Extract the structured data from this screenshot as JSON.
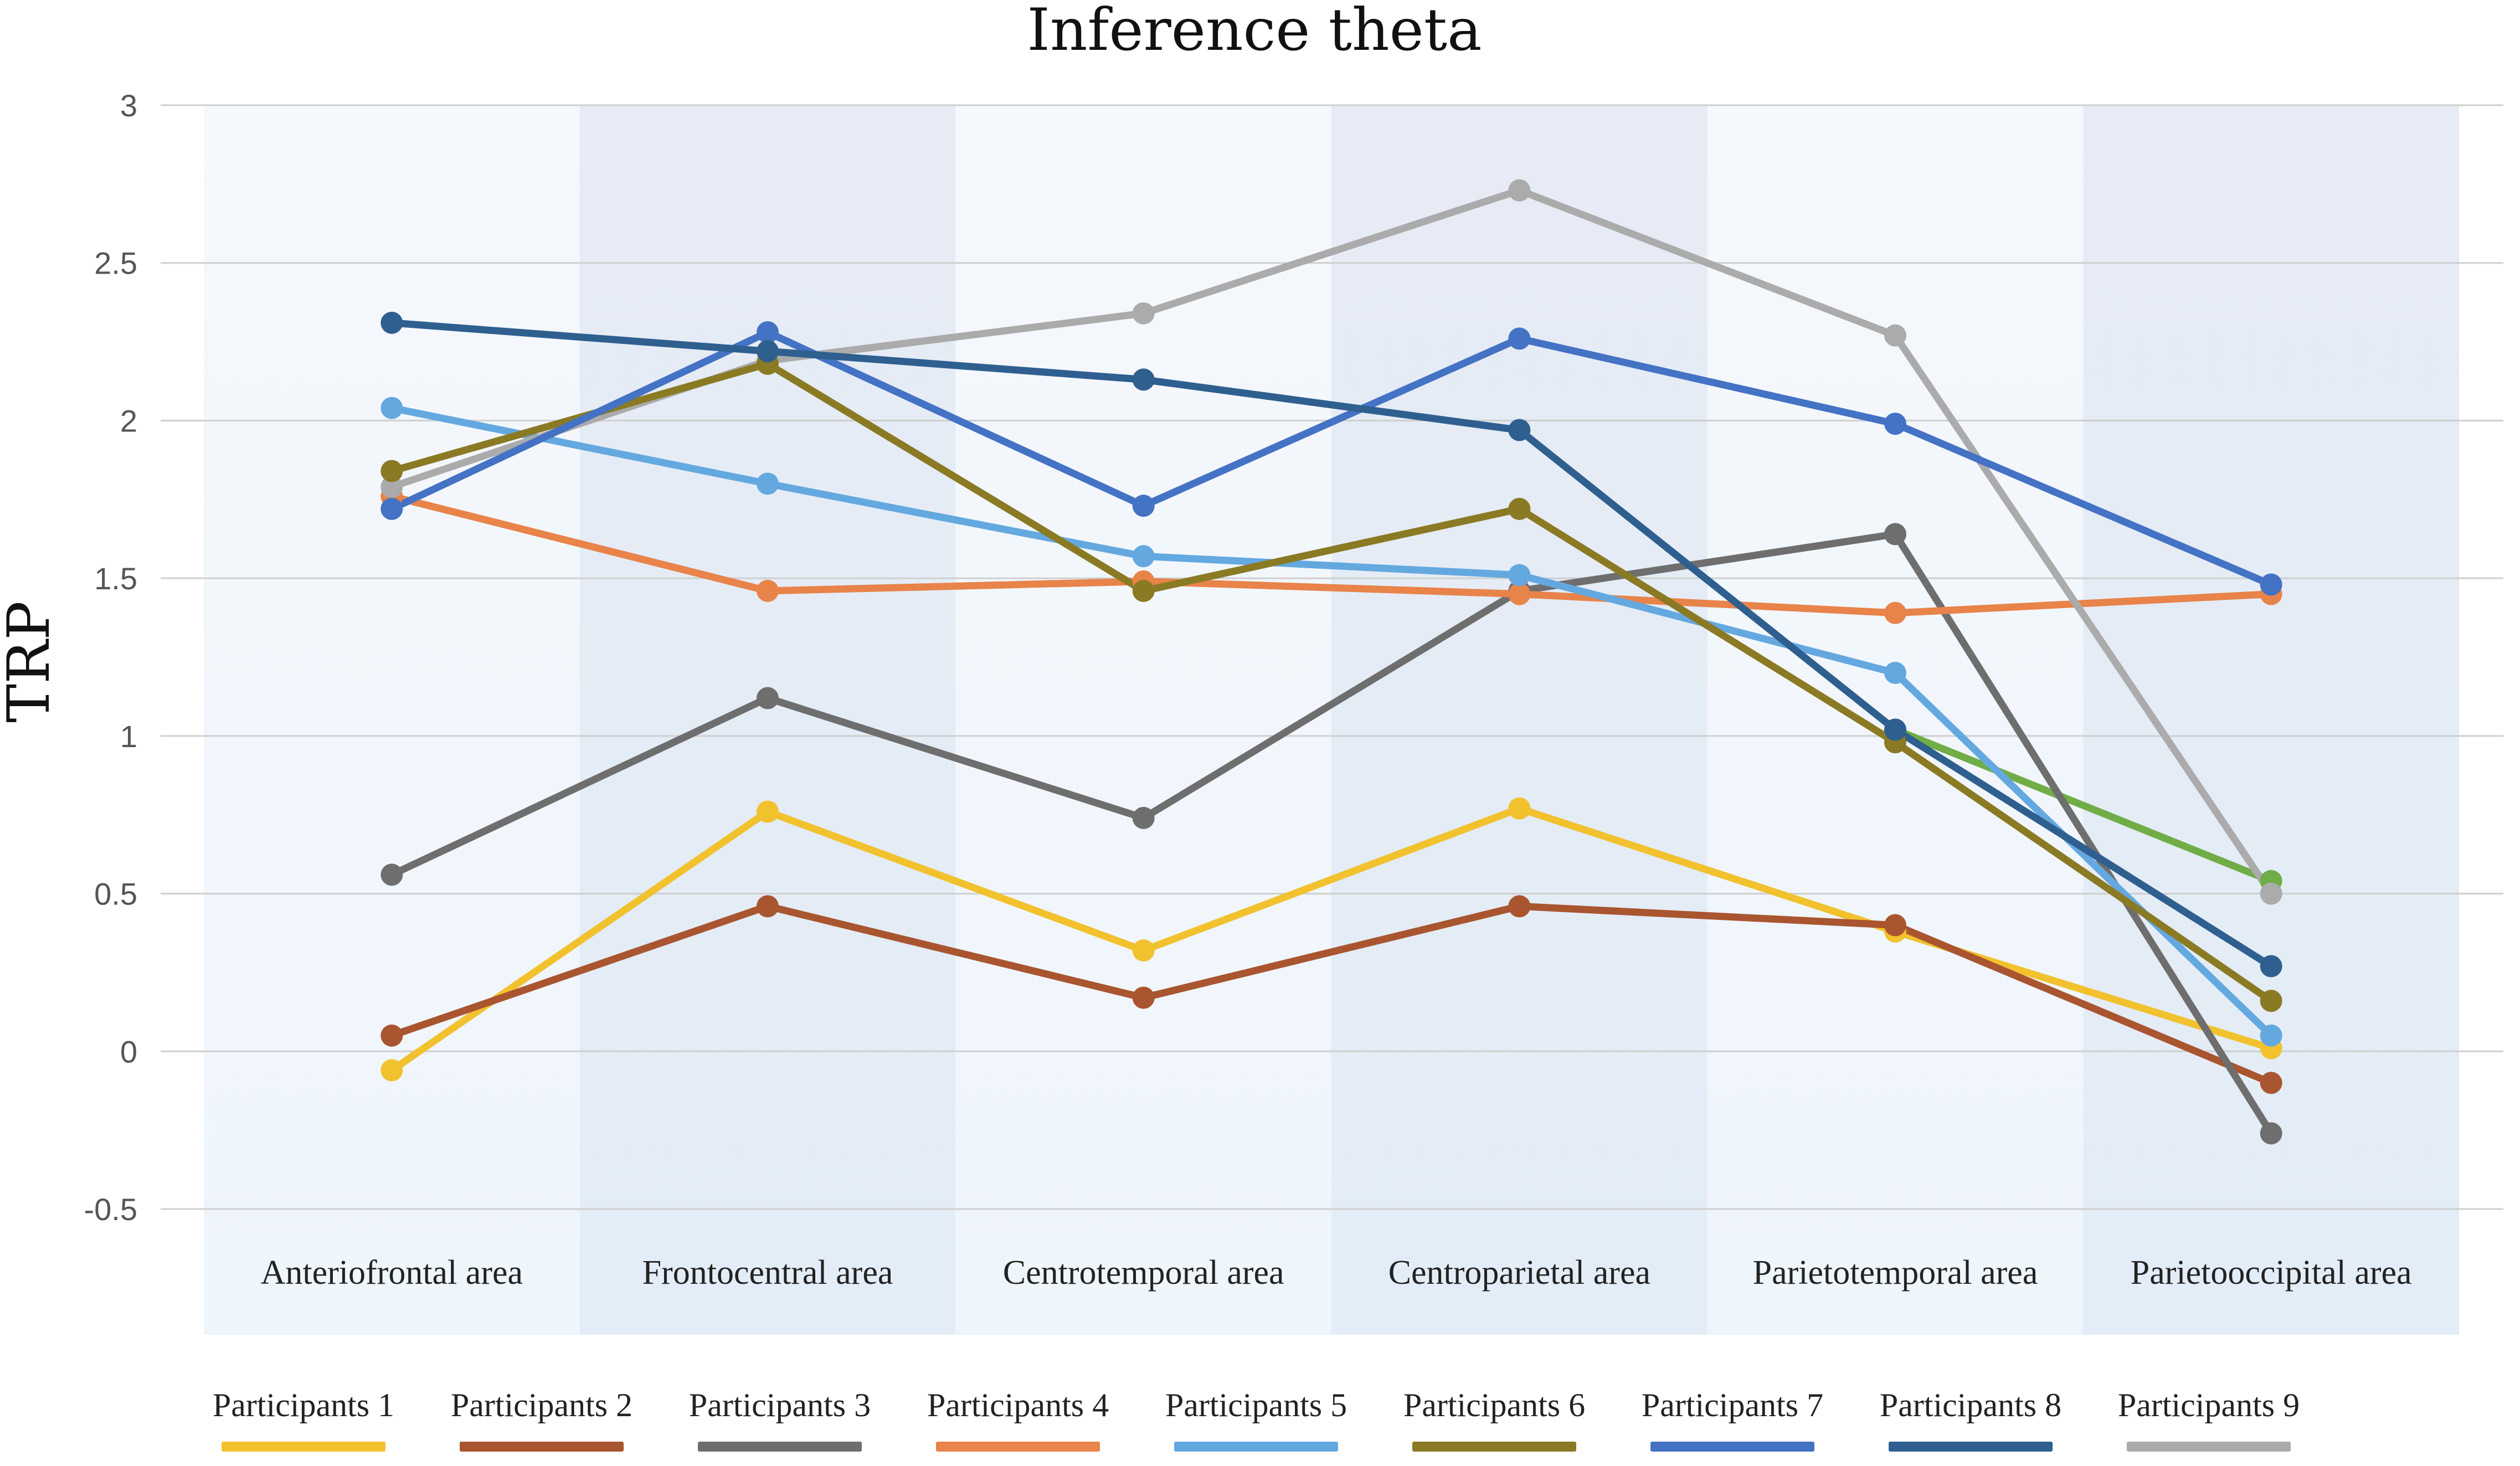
{
  "chart_data": {
    "type": "line",
    "title": "Inference theta",
    "xlabel": "",
    "ylabel": "TRP",
    "ylim": [
      -0.5,
      3
    ],
    "yticks": [
      -0.5,
      0,
      0.5,
      1,
      1.5,
      2,
      2.5,
      3
    ],
    "grid": true,
    "legend_position": "bottom",
    "categories": [
      "Anteriofrontal area",
      "Frontocentral area",
      "Centrotemporal area",
      "Centroparietal area",
      "Parietotemporal area",
      "Parietooccipital area"
    ],
    "series": [
      {
        "name": "Participants 1",
        "color": "#F2C12E",
        "values": [
          -0.06,
          0.76,
          0.32,
          0.77,
          0.38,
          0.01
        ]
      },
      {
        "name": "Participants 2",
        "color": "#A9552F",
        "values": [
          0.05,
          0.46,
          0.17,
          0.46,
          0.4,
          -0.1
        ]
      },
      {
        "name": "Participants 3",
        "color": "#6E6E6E",
        "values": [
          0.56,
          1.12,
          0.74,
          1.46,
          1.64,
          -0.26
        ]
      },
      {
        "name": "Participants 4",
        "color": "#E8834A",
        "values": [
          1.76,
          1.46,
          1.49,
          1.45,
          1.39,
          1.45
        ]
      },
      {
        "name": "Participants 5",
        "color": "#64A8E0",
        "values": [
          2.04,
          1.8,
          1.57,
          1.51,
          1.2,
          0.05
        ]
      },
      {
        "name": "Participants 6",
        "color": "#8A7A24",
        "values": [
          1.84,
          2.18,
          1.46,
          1.72,
          0.98,
          0.16
        ]
      },
      {
        "name": "Participants 7",
        "color": "#4472C4",
        "values": [
          1.72,
          2.28,
          1.73,
          2.26,
          1.99,
          1.48
        ]
      },
      {
        "name": "Participants 8",
        "color": "#2F5F8F",
        "values": [
          2.31,
          2.22,
          2.13,
          1.97,
          1.02,
          0.27
        ]
      },
      {
        "name": "Participants 9",
        "color": "#ABABAB",
        "values": [
          1.79,
          2.19,
          2.34,
          2.73,
          2.27,
          0.5
        ]
      },
      {
        "name": "",
        "color": "#70AD47",
        "values": [
          null,
          null,
          null,
          null,
          1.02,
          0.54
        ]
      }
    ]
  }
}
